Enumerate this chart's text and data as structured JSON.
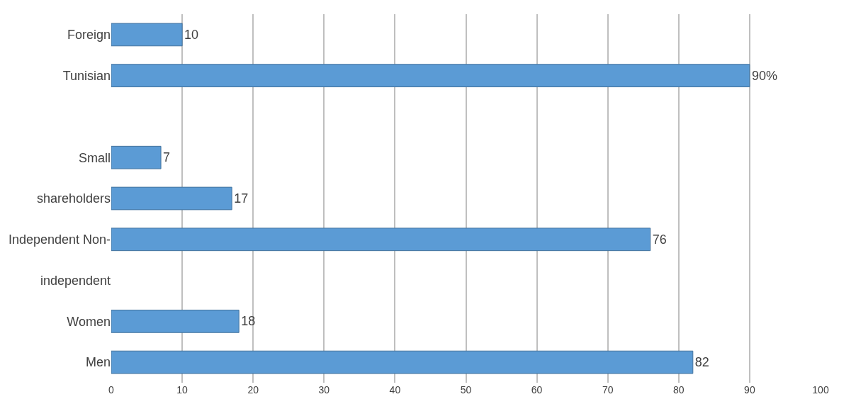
{
  "chart_data": {
    "type": "bar",
    "orientation": "horizontal",
    "categories": [
      "Foreign",
      "Tunisian",
      null,
      "Small",
      "shareholders",
      "Independent Non-",
      "independent",
      "Women",
      "Men"
    ],
    "values": [
      10,
      90,
      null,
      7,
      17,
      76,
      null,
      18,
      82
    ],
    "value_labels": [
      "10",
      "90%",
      null,
      "7",
      "17",
      "76",
      null,
      "18",
      "82"
    ],
    "color": "#5b9bd5",
    "xlim": [
      0,
      100
    ],
    "xticks": [
      0,
      10,
      20,
      30,
      40,
      50,
      60,
      70,
      80,
      90,
      100
    ],
    "grid": "x",
    "legend": false
  }
}
